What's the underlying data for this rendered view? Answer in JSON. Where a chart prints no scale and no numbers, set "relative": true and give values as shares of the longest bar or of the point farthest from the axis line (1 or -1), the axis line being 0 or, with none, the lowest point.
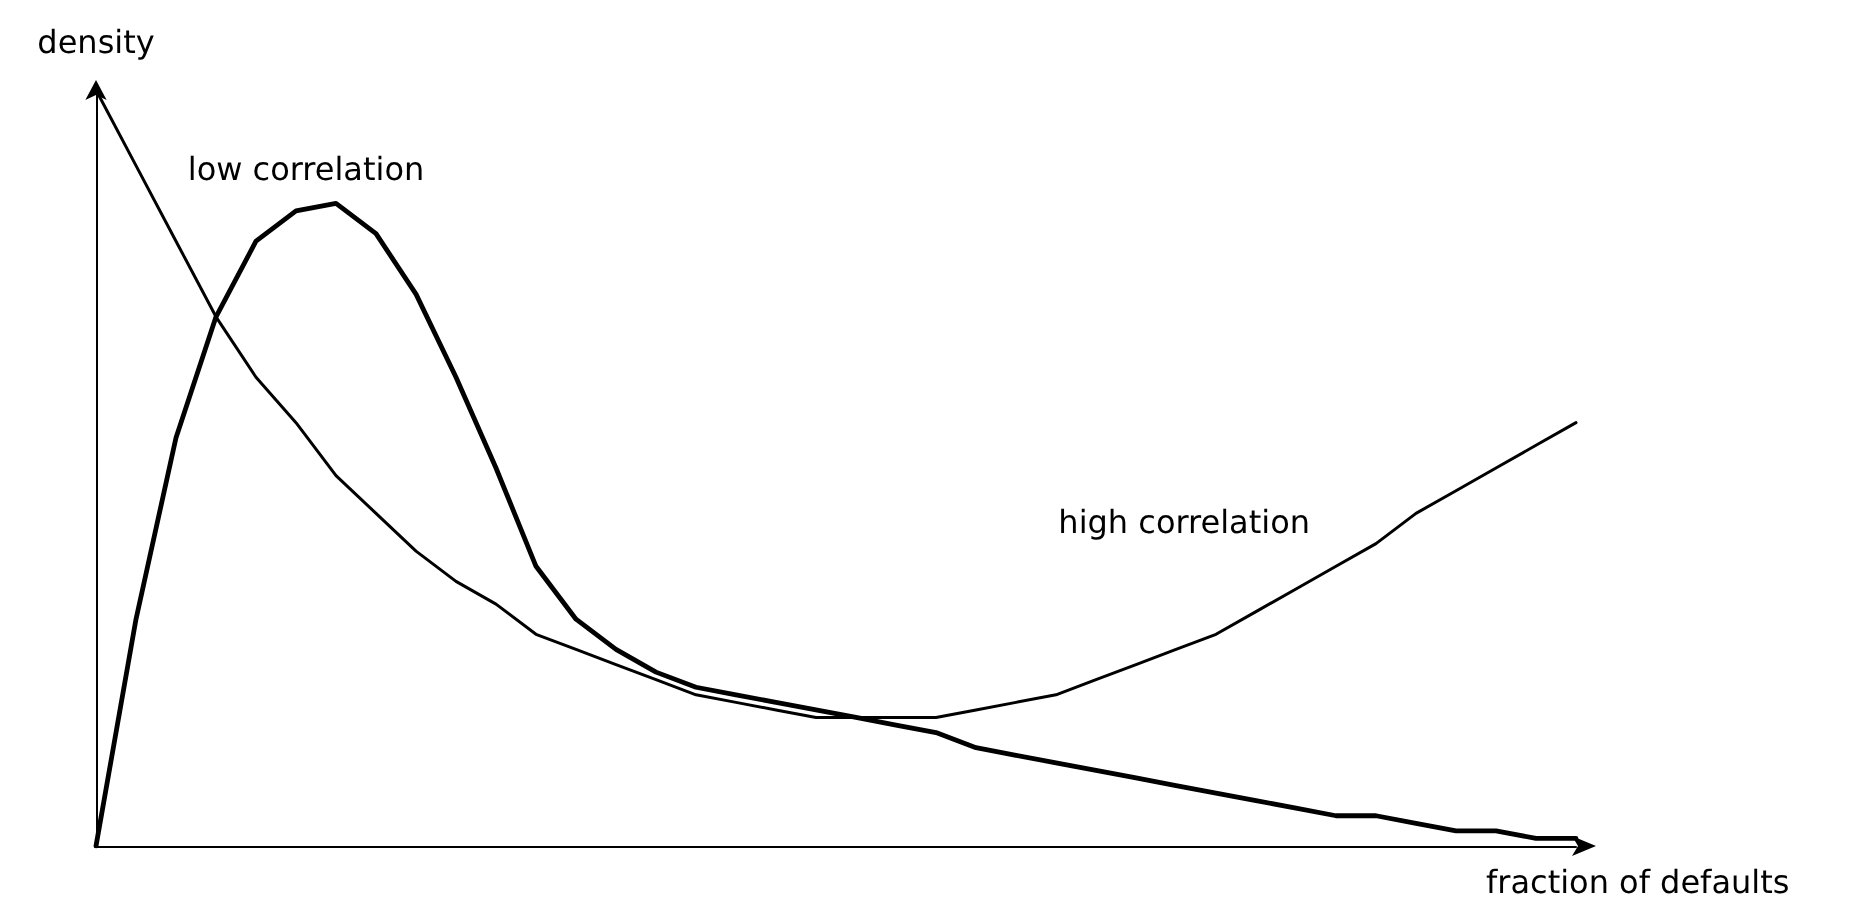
{
  "chart_data": {
    "type": "line",
    "relative": true,
    "xlabel": "fraction of defaults",
    "ylabel": "density",
    "categories": [
      null,
      null,
      null,
      null,
      null,
      null,
      null,
      null,
      null,
      null,
      null,
      null,
      null,
      null,
      null,
      null,
      null,
      null,
      null,
      null,
      null,
      null,
      null,
      null,
      null,
      null,
      null,
      null,
      null,
      null,
      null,
      null,
      null,
      null,
      null,
      null,
      null,
      null
    ],
    "series": [
      {
        "name": "low correlation",
        "color": "#000000",
        "values": [
          0,
          0.3,
          0.54,
          0.7,
          0.8,
          0.84,
          0.85,
          0.81,
          0.73,
          0.62,
          0.5,
          0.37,
          0.3,
          0.26,
          0.23,
          0.21,
          0.2,
          0.19,
          0.18,
          0.17,
          0.16,
          0.15,
          0.13,
          0.12,
          0.11,
          0.1,
          0.09,
          0.08,
          0.07,
          0.06,
          0.05,
          0.04,
          0.04,
          0.03,
          0.02,
          0.02,
          0.01,
          0.01
        ]
      },
      {
        "name": "high correlation",
        "color": "#000000",
        "values": [
          1.0,
          0.9,
          0.8,
          0.7,
          0.62,
          0.56,
          0.49,
          0.44,
          0.39,
          0.35,
          0.32,
          0.28,
          0.26,
          0.24,
          0.22,
          0.2,
          0.19,
          0.18,
          0.17,
          0.17,
          0.17,
          0.17,
          0.18,
          0.19,
          0.2,
          0.22,
          0.24,
          0.26,
          0.28,
          0.31,
          0.34,
          0.37,
          0.4,
          0.44,
          0.47,
          0.5,
          0.53,
          0.56
        ]
      }
    ],
    "marker": "none",
    "line_style": "solid",
    "grid": false,
    "legend": false
  }
}
